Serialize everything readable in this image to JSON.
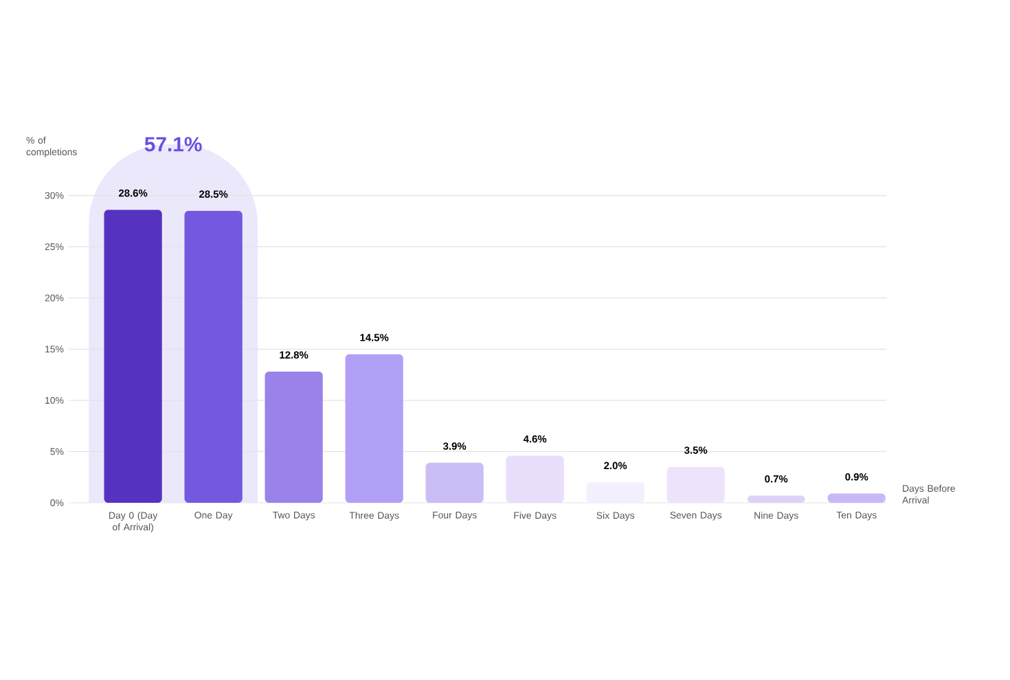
{
  "chart_data": {
    "type": "bar",
    "categories": [
      "Day 0 (Day of Arrival)",
      "One Day",
      "Two Days",
      "Three Days",
      "Four Days",
      "Five Days",
      "Six Days",
      "Seven Days",
      "Nine Days",
      "Ten Days"
    ],
    "values": [
      28.6,
      28.5,
      12.8,
      14.5,
      3.9,
      4.6,
      2.0,
      3.5,
      0.7,
      0.9
    ],
    "colors": [
      "#5533c0",
      "#7458e0",
      "#9b82ea",
      "#b2a0f7",
      "#cbbdf5",
      "#e9defc",
      "#f4effd",
      "#ede4fb",
      "#ddd2f8",
      "#c9b8f7"
    ],
    "value_labels": [
      "28.6%",
      "28.5%",
      "12.8%",
      "14.5%",
      "3.9%",
      "4.6%",
      "2.0%",
      "3.5%",
      "0.7%",
      "0.9%"
    ],
    "ylabel": "% of completions",
    "xlabel": "Days Before Arrival",
    "ylim": [
      0,
      35
    ],
    "yticks": [
      {
        "value": 0,
        "label": "0%"
      },
      {
        "value": 5,
        "label": "5%"
      },
      {
        "value": 10,
        "label": "10%"
      },
      {
        "value": 15,
        "label": "15%"
      },
      {
        "value": 20,
        "label": "20%"
      },
      {
        "value": 25,
        "label": "25%"
      },
      {
        "value": 30,
        "label": "30%"
      }
    ],
    "grid": "y",
    "annotations": [
      "57.1%"
    ]
  }
}
